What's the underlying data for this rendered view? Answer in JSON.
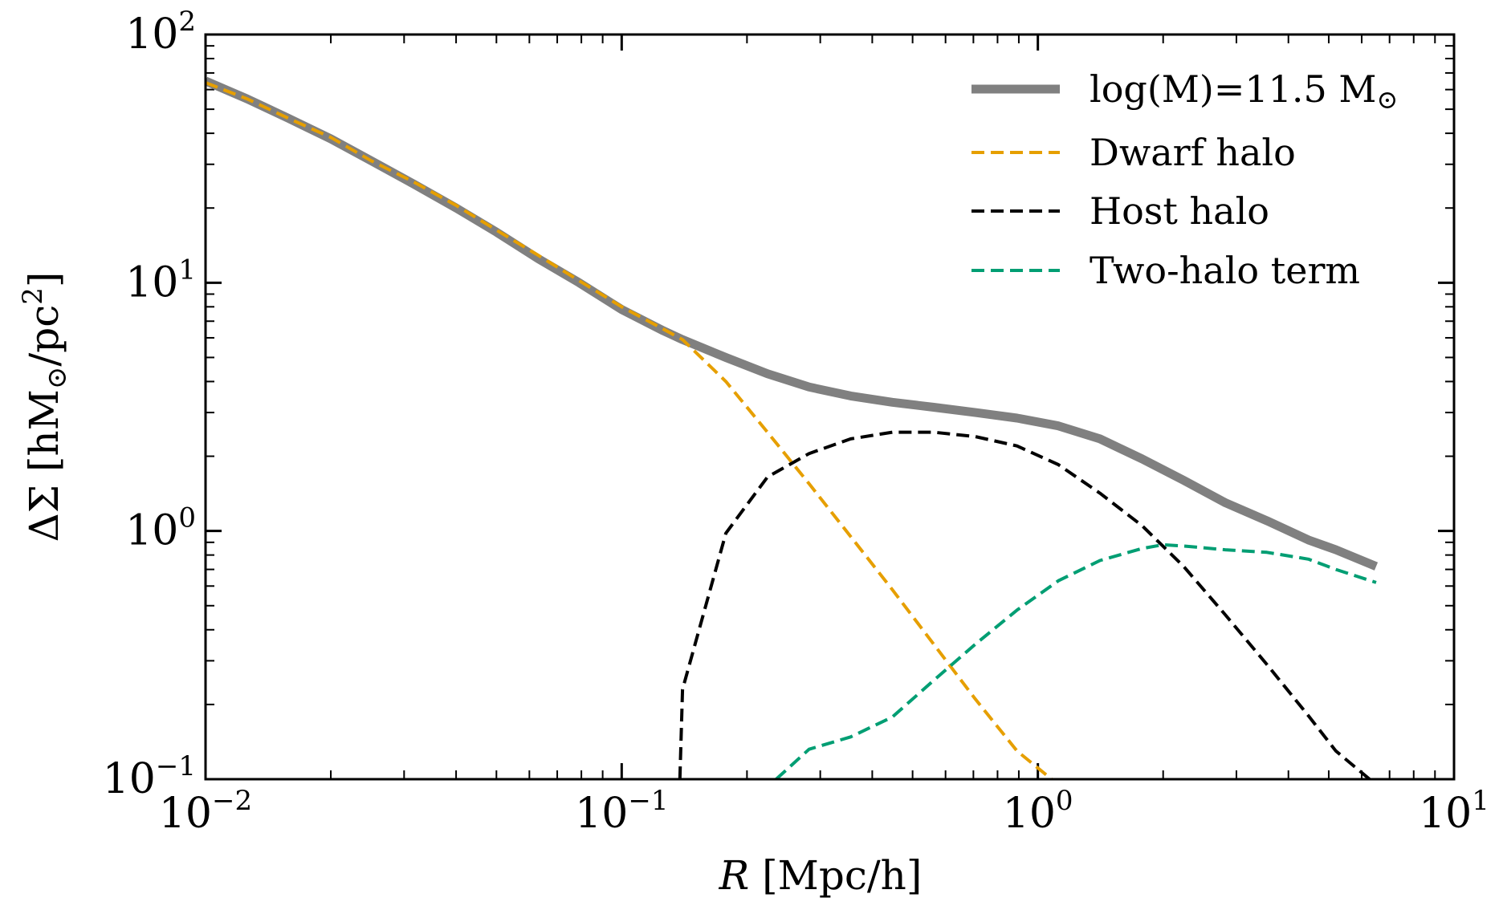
{
  "chart_data": {
    "type": "line",
    "title": "",
    "xlabel": {
      "italic": "R",
      "rest": " [Mpc/h]"
    },
    "ylabel": {
      "base": "ΔΣ [hM",
      "sub": "⊙",
      "mid": "/pc",
      "sup": "2",
      "end": "]"
    },
    "xscale": "log",
    "yscale": "log",
    "xlim": [
      0.01,
      10
    ],
    "ylim": [
      0.1,
      100
    ],
    "x_ticks": [
      {
        "value": 0.01,
        "base": "10",
        "exp": "−2"
      },
      {
        "value": 0.1,
        "base": "10",
        "exp": "−1"
      },
      {
        "value": 1,
        "base": "10",
        "exp": "0"
      },
      {
        "value": 10,
        "base": "10",
        "exp": "1"
      }
    ],
    "y_ticks": [
      {
        "value": 0.1,
        "base": "10",
        "exp": "−1"
      },
      {
        "value": 1,
        "base": "10",
        "exp": "0"
      },
      {
        "value": 10,
        "base": "10",
        "exp": "1"
      },
      {
        "value": 100,
        "base": "10",
        "exp": "2"
      }
    ],
    "legend_position": "top-right",
    "series": [
      {
        "name": "log(M)=11.5 M⊙",
        "label_text": "log(M)=11.5 M",
        "label_sub": "⊙",
        "color": "#808080",
        "style": "solid-thick",
        "x": [
          0.01,
          0.0126,
          0.0158,
          0.02,
          0.025,
          0.0316,
          0.04,
          0.05,
          0.063,
          0.079,
          0.1,
          0.126,
          0.14,
          0.178,
          0.224,
          0.282,
          0.355,
          0.447,
          0.562,
          0.708,
          0.891,
          1.12,
          1.41,
          1.78,
          2.24,
          2.82,
          3.55,
          4.47,
          5.2,
          6.5
        ],
        "values": [
          65,
          55,
          46,
          38,
          31,
          25,
          20,
          16,
          12.5,
          10,
          7.8,
          6.4,
          5.9,
          5.0,
          4.3,
          3.8,
          3.5,
          3.3,
          3.15,
          3.0,
          2.85,
          2.65,
          2.35,
          1.95,
          1.6,
          1.3,
          1.1,
          0.92,
          0.84,
          0.72
        ]
      },
      {
        "name": "Dwarf halo",
        "color": "#E69F00",
        "style": "dashed",
        "x": [
          0.01,
          0.0126,
          0.0158,
          0.02,
          0.025,
          0.0316,
          0.04,
          0.05,
          0.063,
          0.079,
          0.1,
          0.126,
          0.14,
          0.178,
          0.224,
          0.282,
          0.355,
          0.447,
          0.562,
          0.708,
          0.891,
          1.12
        ],
        "values": [
          64,
          55,
          46,
          38.5,
          31,
          25.5,
          20.5,
          16.3,
          12.9,
          10.2,
          8.0,
          6.5,
          5.9,
          4.0,
          2.5,
          1.55,
          0.95,
          0.58,
          0.35,
          0.21,
          0.13,
          0.095
        ]
      },
      {
        "name": "Host halo",
        "color": "#000000",
        "style": "dashed",
        "x": [
          0.138,
          0.14,
          0.178,
          0.224,
          0.282,
          0.355,
          0.447,
          0.562,
          0.708,
          0.891,
          1.12,
          1.41,
          1.78,
          2.24,
          2.82,
          3.55,
          4.47,
          5.2,
          6.5
        ],
        "values": [
          0.1,
          0.23,
          0.98,
          1.65,
          2.05,
          2.35,
          2.5,
          2.5,
          2.4,
          2.2,
          1.85,
          1.42,
          1.05,
          0.72,
          0.46,
          0.29,
          0.18,
          0.13,
          0.095
        ]
      },
      {
        "name": "Two-halo term",
        "color": "#009E73",
        "style": "dashed",
        "x": [
          0.235,
          0.282,
          0.355,
          0.447,
          0.562,
          0.708,
          0.891,
          1.12,
          1.41,
          1.78,
          2.0,
          2.24,
          2.82,
          3.55,
          4.47,
          5.2,
          6.5
        ],
        "values": [
          0.1,
          0.132,
          0.148,
          0.178,
          0.25,
          0.35,
          0.48,
          0.63,
          0.76,
          0.85,
          0.88,
          0.87,
          0.84,
          0.82,
          0.77,
          0.7,
          0.62
        ]
      }
    ]
  }
}
